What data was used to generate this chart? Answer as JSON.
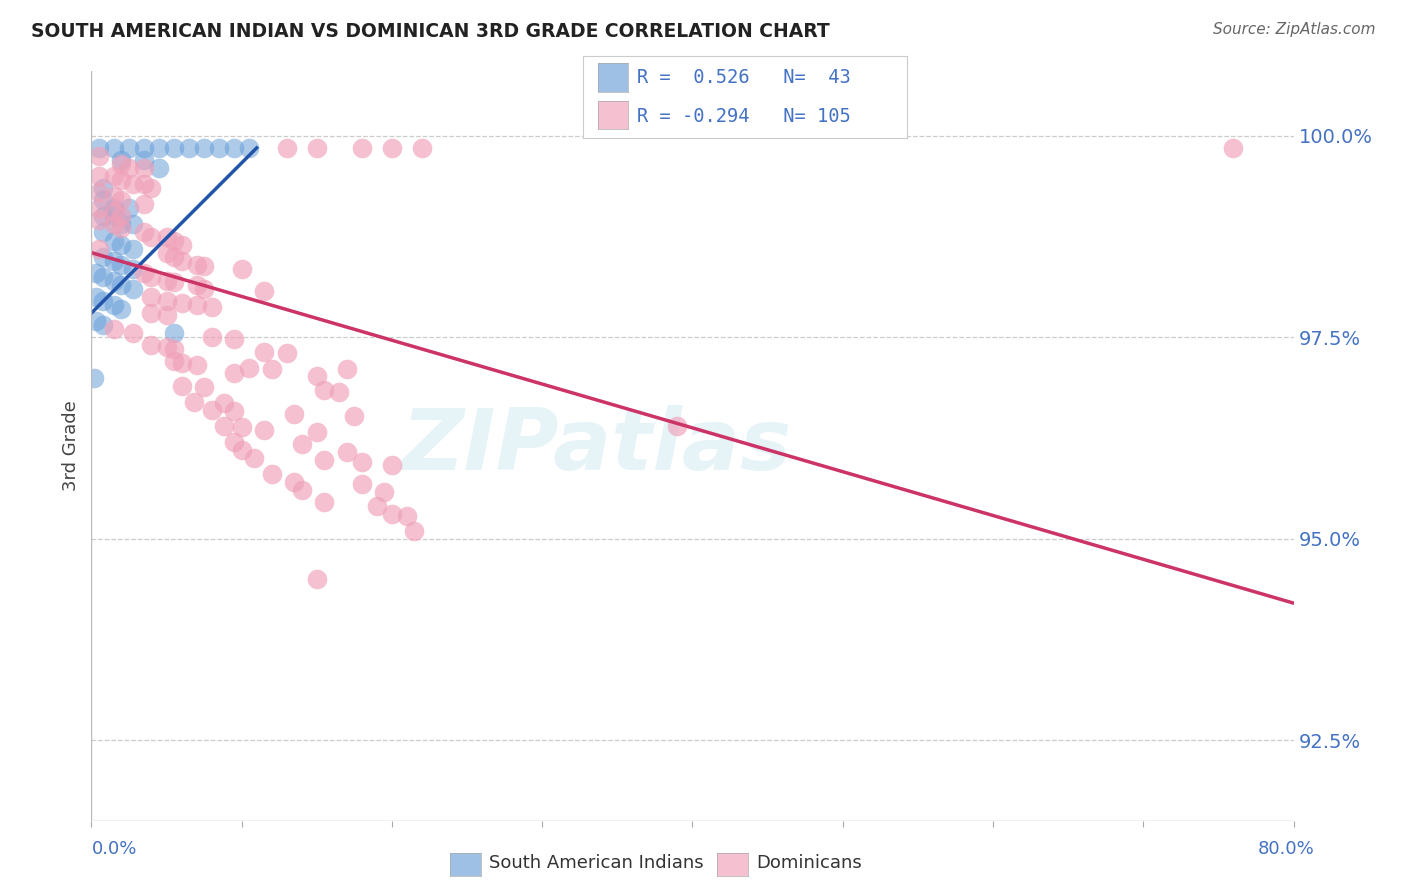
{
  "title": "SOUTH AMERICAN INDIAN VS DOMINICAN 3RD GRADE CORRELATION CHART",
  "source": "Source: ZipAtlas.com",
  "ylabel": "3rd Grade",
  "y_tick_labels": [
    "92.5%",
    "95.0%",
    "97.5%",
    "100.0%"
  ],
  "y_tick_values": [
    92.5,
    95.0,
    97.5,
    100.0
  ],
  "blue_color": "#6a9fd8",
  "pink_color": "#f0a0b8",
  "trendline_blue": "#2255aa",
  "trendline_pink": "#cc3366",
  "blue_dots": [
    [
      0.5,
      99.85
    ],
    [
      1.5,
      99.85
    ],
    [
      2.5,
      99.85
    ],
    [
      3.5,
      99.85
    ],
    [
      4.5,
      99.85
    ],
    [
      5.5,
      99.85
    ],
    [
      6.5,
      99.85
    ],
    [
      7.5,
      99.85
    ],
    [
      8.5,
      99.85
    ],
    [
      9.5,
      99.85
    ],
    [
      10.5,
      99.85
    ],
    [
      2.0,
      99.7
    ],
    [
      3.5,
      99.7
    ],
    [
      4.5,
      99.6
    ],
    [
      0.8,
      99.35
    ],
    [
      0.8,
      99.2
    ],
    [
      1.5,
      99.1
    ],
    [
      2.5,
      99.1
    ],
    [
      0.8,
      99.0
    ],
    [
      1.5,
      99.0
    ],
    [
      2.0,
      98.9
    ],
    [
      2.8,
      98.9
    ],
    [
      0.8,
      98.8
    ],
    [
      1.5,
      98.7
    ],
    [
      2.0,
      98.65
    ],
    [
      2.8,
      98.6
    ],
    [
      0.8,
      98.5
    ],
    [
      1.5,
      98.45
    ],
    [
      2.0,
      98.4
    ],
    [
      2.8,
      98.35
    ],
    [
      0.3,
      98.3
    ],
    [
      0.8,
      98.25
    ],
    [
      1.5,
      98.2
    ],
    [
      2.0,
      98.15
    ],
    [
      2.8,
      98.1
    ],
    [
      0.3,
      98.0
    ],
    [
      0.8,
      97.95
    ],
    [
      1.5,
      97.9
    ],
    [
      2.0,
      97.85
    ],
    [
      0.3,
      97.7
    ],
    [
      0.8,
      97.65
    ],
    [
      5.5,
      97.55
    ],
    [
      0.2,
      97.0
    ]
  ],
  "pink_dots": [
    [
      13.0,
      99.85
    ],
    [
      15.0,
      99.85
    ],
    [
      18.0,
      99.85
    ],
    [
      20.0,
      99.85
    ],
    [
      22.0,
      99.85
    ],
    [
      76.0,
      99.85
    ],
    [
      0.5,
      99.75
    ],
    [
      2.0,
      99.65
    ],
    [
      2.5,
      99.6
    ],
    [
      3.5,
      99.6
    ],
    [
      0.5,
      99.5
    ],
    [
      1.5,
      99.5
    ],
    [
      2.0,
      99.45
    ],
    [
      2.8,
      99.4
    ],
    [
      3.5,
      99.4
    ],
    [
      4.0,
      99.35
    ],
    [
      0.5,
      99.3
    ],
    [
      1.5,
      99.25
    ],
    [
      2.0,
      99.2
    ],
    [
      3.5,
      99.15
    ],
    [
      0.5,
      99.1
    ],
    [
      1.5,
      99.05
    ],
    [
      2.0,
      99.0
    ],
    [
      0.5,
      98.95
    ],
    [
      1.5,
      98.9
    ],
    [
      2.0,
      98.85
    ],
    [
      3.5,
      98.8
    ],
    [
      4.0,
      98.75
    ],
    [
      5.0,
      98.75
    ],
    [
      5.5,
      98.7
    ],
    [
      6.0,
      98.65
    ],
    [
      0.5,
      98.6
    ],
    [
      5.0,
      98.55
    ],
    [
      5.5,
      98.5
    ],
    [
      6.0,
      98.45
    ],
    [
      7.0,
      98.4
    ],
    [
      7.5,
      98.38
    ],
    [
      10.0,
      98.35
    ],
    [
      3.5,
      98.3
    ],
    [
      4.0,
      98.25
    ],
    [
      5.0,
      98.2
    ],
    [
      5.5,
      98.18
    ],
    [
      7.0,
      98.15
    ],
    [
      7.5,
      98.1
    ],
    [
      11.5,
      98.08
    ],
    [
      4.0,
      98.0
    ],
    [
      5.0,
      97.95
    ],
    [
      6.0,
      97.92
    ],
    [
      7.0,
      97.9
    ],
    [
      8.0,
      97.88
    ],
    [
      4.0,
      97.8
    ],
    [
      5.0,
      97.78
    ],
    [
      1.5,
      97.6
    ],
    [
      2.8,
      97.55
    ],
    [
      8.0,
      97.5
    ],
    [
      9.5,
      97.48
    ],
    [
      4.0,
      97.4
    ],
    [
      5.0,
      97.38
    ],
    [
      5.5,
      97.35
    ],
    [
      11.5,
      97.32
    ],
    [
      13.0,
      97.3
    ],
    [
      5.5,
      97.2
    ],
    [
      6.0,
      97.18
    ],
    [
      7.0,
      97.15
    ],
    [
      10.5,
      97.12
    ],
    [
      12.0,
      97.1
    ],
    [
      17.0,
      97.1
    ],
    [
      9.5,
      97.05
    ],
    [
      15.0,
      97.02
    ],
    [
      6.0,
      96.9
    ],
    [
      7.5,
      96.88
    ],
    [
      15.5,
      96.85
    ],
    [
      16.5,
      96.82
    ],
    [
      6.8,
      96.7
    ],
    [
      8.8,
      96.68
    ],
    [
      8.0,
      96.6
    ],
    [
      9.5,
      96.58
    ],
    [
      13.5,
      96.55
    ],
    [
      17.5,
      96.52
    ],
    [
      8.8,
      96.4
    ],
    [
      10.0,
      96.38
    ],
    [
      11.5,
      96.35
    ],
    [
      15.0,
      96.32
    ],
    [
      9.5,
      96.2
    ],
    [
      14.0,
      96.18
    ],
    [
      10.0,
      96.1
    ],
    [
      17.0,
      96.08
    ],
    [
      10.8,
      96.0
    ],
    [
      15.5,
      95.98
    ],
    [
      18.0,
      95.95
    ],
    [
      20.0,
      95.92
    ],
    [
      12.0,
      95.8
    ],
    [
      13.5,
      95.7
    ],
    [
      18.0,
      95.68
    ],
    [
      14.0,
      95.6
    ],
    [
      19.5,
      95.58
    ],
    [
      15.5,
      95.45
    ],
    [
      19.0,
      95.4
    ],
    [
      20.0,
      95.3
    ],
    [
      21.0,
      95.28
    ],
    [
      21.5,
      95.1
    ],
    [
      15.0,
      94.5
    ],
    [
      39.0,
      96.4
    ]
  ],
  "blue_trendline_x": [
    0.0,
    11.0
  ],
  "blue_trendline_y": [
    97.8,
    99.85
  ],
  "pink_trendline_x": [
    0.0,
    80.0
  ],
  "pink_trendline_y": [
    98.55,
    94.2
  ],
  "xlim": [
    0.0,
    80.0
  ],
  "ylim": [
    91.5,
    100.8
  ],
  "background_color": "#ffffff",
  "grid_color": "#cccccc",
  "watermark_text": "ZIPatlas",
  "watermark_color": "#add8e6",
  "watermark_alpha": 0.3
}
